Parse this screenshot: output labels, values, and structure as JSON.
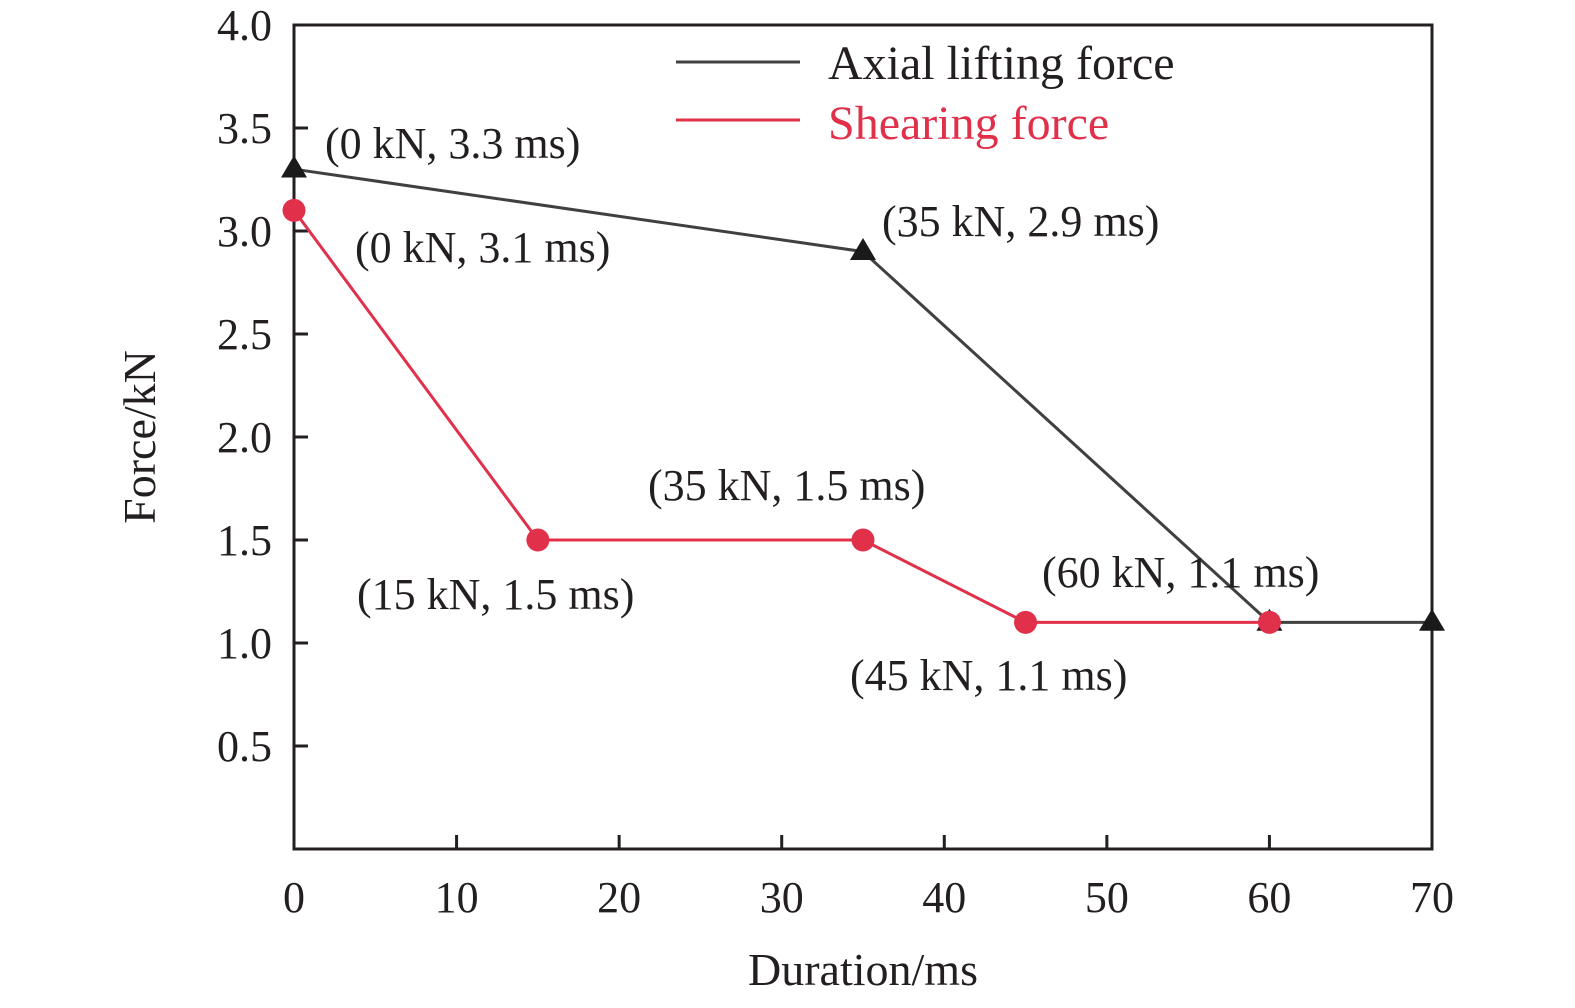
{
  "chart_data": {
    "type": "line",
    "title": "",
    "xlabel": "Duration/ms",
    "ylabel": "Force/kN",
    "xlim": [
      0,
      70
    ],
    "ylim": [
      0,
      4.0
    ],
    "x_ticks": [
      0,
      10,
      20,
      30,
      40,
      50,
      60,
      70
    ],
    "x_tick_labels": [
      "0",
      "10",
      "20",
      "30",
      "40",
      "50",
      "60",
      "70"
    ],
    "y_ticks": [
      0.5,
      1.0,
      1.5,
      2.0,
      2.5,
      3.0,
      3.5,
      4.0
    ],
    "y_tick_labels": [
      "0.5",
      "1.0",
      "1.5",
      "2.0",
      "2.5",
      "3.0",
      "3.5",
      "4.0"
    ],
    "grid": false,
    "legend_position": "top-right",
    "series": [
      {
        "name": "Axial lifting force",
        "color": "#404040",
        "marker": "triangle",
        "x": [
          0,
          35,
          60,
          70
        ],
        "y": [
          3.3,
          2.9,
          1.1,
          1.1
        ]
      },
      {
        "name": "Shearing force",
        "color": "#e0304a",
        "marker": "circle",
        "x": [
          0,
          15,
          35,
          45,
          60
        ],
        "y": [
          3.1,
          1.5,
          1.5,
          1.1,
          1.1
        ]
      }
    ],
    "annotations": [
      {
        "text": "(0 kN, 3.3 ms)"
      },
      {
        "text": "(0 kN, 3.1 ms)"
      },
      {
        "text": "(35 kN, 2.9 ms)"
      },
      {
        "text": "(35 kN, 1.5 ms)"
      },
      {
        "text": "(15 kN, 1.5 ms)"
      },
      {
        "text": "(60 kN, 1.1 ms)"
      },
      {
        "text": "(45 kN, 1.1 ms)"
      }
    ]
  }
}
